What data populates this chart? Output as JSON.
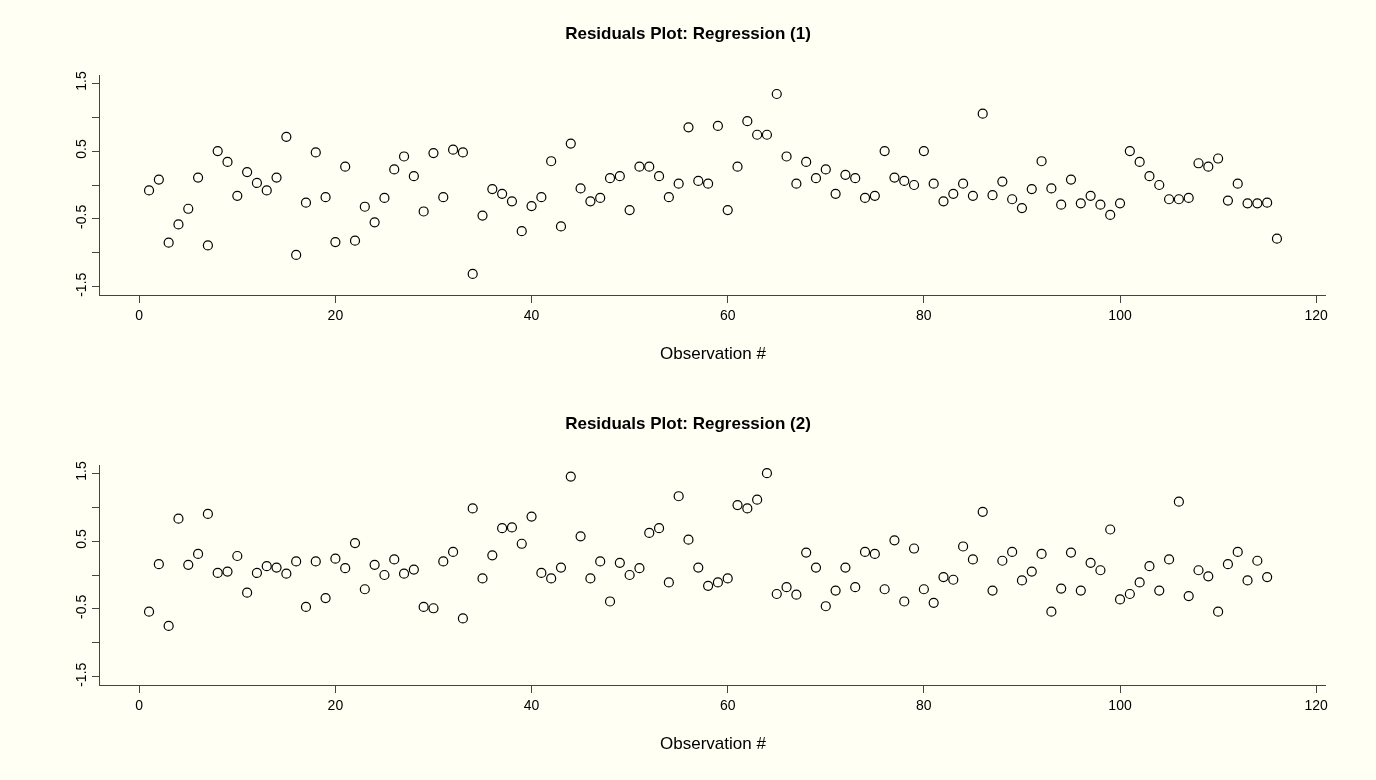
{
  "chart_data": [
    {
      "type": "scatter",
      "title": "Residuals Plot: Regression (1)",
      "xlabel": "Observation #",
      "marker": "circle",
      "xlim": [
        -4,
        121
      ],
      "xticks": [
        0,
        20,
        40,
        60,
        80,
        100,
        120
      ],
      "ylim": [
        -1.62,
        1.62
      ],
      "yticks": [
        -1.5,
        {
          "value": -1,
          "label": null
        },
        -0.5,
        {
          "value": 0,
          "label": null
        },
        0.5,
        {
          "value": 1,
          "label": null
        },
        1.5
      ],
      "series": [
        {
          "color": "#000000",
          "x": [
            1,
            2,
            3,
            4,
            5,
            6,
            7,
            8,
            9,
            10,
            11,
            12,
            13,
            14,
            15,
            16,
            17,
            18,
            19,
            20,
            21,
            22,
            23,
            24,
            25,
            26,
            27,
            28,
            29,
            30,
            31,
            32,
            33,
            34,
            35,
            36,
            37,
            38,
            39,
            40,
            41,
            42,
            43,
            44,
            45,
            46,
            47,
            48,
            49,
            50,
            51,
            52,
            53,
            54,
            55,
            56,
            57,
            58,
            59,
            60,
            61,
            62,
            63,
            64,
            65,
            66,
            67,
            68,
            69,
            70,
            71,
            72,
            73,
            74,
            75,
            76,
            77,
            78,
            79,
            80,
            81,
            82,
            83,
            84,
            85,
            86,
            87,
            88,
            89,
            90,
            91,
            92,
            93,
            94,
            95,
            96,
            97,
            98,
            99,
            100,
            101,
            102,
            103,
            104,
            105,
            106,
            107,
            108,
            109,
            110,
            111,
            112,
            113,
            114,
            115,
            116
          ],
          "values": [
            -0.08,
            0.08,
            -0.85,
            -0.58,
            -0.35,
            0.11,
            -0.89,
            0.5,
            0.34,
            -0.16,
            0.19,
            0.03,
            -0.08,
            0.11,
            0.71,
            -1.03,
            -0.26,
            0.48,
            -0.18,
            -0.84,
            0.27,
            -0.82,
            -0.32,
            -0.55,
            -0.19,
            0.23,
            0.42,
            0.13,
            -0.39,
            0.47,
            -0.18,
            0.52,
            0.48,
            -1.31,
            -0.45,
            -0.06,
            -0.13,
            -0.24,
            -0.68,
            -0.31,
            -0.18,
            0.35,
            -0.61,
            0.61,
            -0.05,
            -0.24,
            -0.19,
            0.1,
            0.13,
            -0.37,
            0.27,
            0.27,
            0.13,
            -0.18,
            0.02,
            0.85,
            0.06,
            0.02,
            0.87,
            -0.37,
            0.27,
            0.94,
            0.74,
            0.74,
            1.34,
            0.42,
            0.02,
            0.34,
            0.1,
            0.23,
            -0.13,
            0.15,
            0.1,
            -0.19,
            -0.16,
            0.5,
            0.11,
            0.06,
            0,
            0.5,
            0.02,
            -0.24,
            -0.13,
            0.02,
            -0.16,
            1.05,
            -0.15,
            0.05,
            -0.21,
            -0.34,
            -0.06,
            0.35,
            -0.05,
            -0.29,
            0.08,
            -0.27,
            -0.16,
            -0.29,
            -0.44,
            -0.27,
            0.5,
            0.34,
            0.13,
            0,
            -0.21,
            -0.21,
            -0.19,
            0.32,
            0.27,
            0.39,
            -0.23,
            0.02,
            -0.27,
            -0.27,
            -0.26,
            -0.79
          ]
        }
      ]
    },
    {
      "type": "scatter",
      "title": "Residuals Plot: Regression (2)",
      "xlabel": "Observation #",
      "marker": "circle",
      "xlim": [
        -4,
        121
      ],
      "xticks": [
        0,
        20,
        40,
        60,
        80,
        100,
        120
      ],
      "ylim": [
        -1.62,
        1.62
      ],
      "yticks": [
        -1.5,
        {
          "value": -1,
          "label": null
        },
        -0.5,
        {
          "value": 0,
          "label": null
        },
        0.5,
        {
          "value": 1,
          "label": null
        },
        1.5
      ],
      "series": [
        {
          "color": "#000000",
          "x": [
            1,
            2,
            3,
            4,
            5,
            6,
            7,
            8,
            9,
            10,
            11,
            12,
            13,
            14,
            15,
            16,
            17,
            18,
            19,
            20,
            21,
            22,
            23,
            24,
            25,
            26,
            27,
            28,
            29,
            30,
            31,
            32,
            33,
            34,
            35,
            36,
            37,
            38,
            39,
            40,
            41,
            42,
            43,
            44,
            45,
            46,
            47,
            48,
            49,
            50,
            51,
            52,
            53,
            54,
            55,
            56,
            57,
            58,
            59,
            60,
            61,
            62,
            63,
            64,
            65,
            66,
            67,
            68,
            69,
            70,
            71,
            72,
            73,
            74,
            75,
            76,
            77,
            78,
            79,
            80,
            81,
            82,
            83,
            84,
            85,
            86,
            87,
            88,
            89,
            90,
            91,
            92,
            93,
            94,
            95,
            96,
            97,
            98,
            99,
            100,
            101,
            102,
            103,
            104,
            105,
            106,
            107,
            108,
            109,
            110,
            111,
            112,
            113,
            114,
            115
          ],
          "values": [
            -0.54,
            0.16,
            -0.75,
            0.83,
            0.15,
            0.31,
            0.9,
            0.03,
            0.05,
            0.28,
            -0.26,
            0.03,
            0.13,
            0.11,
            0.02,
            0.2,
            -0.47,
            0.2,
            -0.34,
            0.24,
            0.1,
            0.47,
            -0.21,
            0.15,
            0,
            0.23,
            0.02,
            0.08,
            -0.47,
            -0.49,
            0.2,
            0.34,
            -0.64,
            0.98,
            -0.05,
            0.29,
            0.69,
            0.7,
            0.46,
            0.86,
            0.03,
            -0.05,
            0.11,
            1.45,
            0.57,
            -0.05,
            0.2,
            -0.39,
            0.18,
            0,
            0.1,
            0.62,
            0.69,
            -0.11,
            1.16,
            0.52,
            0.11,
            -0.16,
            -0.11,
            -0.05,
            1.03,
            0.98,
            1.11,
            1.5,
            -0.28,
            -0.18,
            -0.29,
            0.33,
            0.11,
            -0.46,
            -0.23,
            0.11,
            -0.18,
            0.34,
            0.31,
            -0.21,
            0.51,
            -0.39,
            0.39,
            -0.21,
            -0.41,
            -0.03,
            -0.07,
            0.42,
            0.23,
            0.93,
            -0.23,
            0.21,
            0.34,
            -0.08,
            0.05,
            0.31,
            -0.54,
            -0.2,
            0.33,
            -0.23,
            0.18,
            0.07,
            0.67,
            -0.36,
            -0.28,
            -0.11,
            0.13,
            -0.23,
            0.23,
            1.08,
            -0.31,
            0.07,
            -0.02,
            -0.54,
            0.16,
            0.34,
            -0.08,
            0.21,
            -0.03
          ]
        }
      ]
    }
  ]
}
